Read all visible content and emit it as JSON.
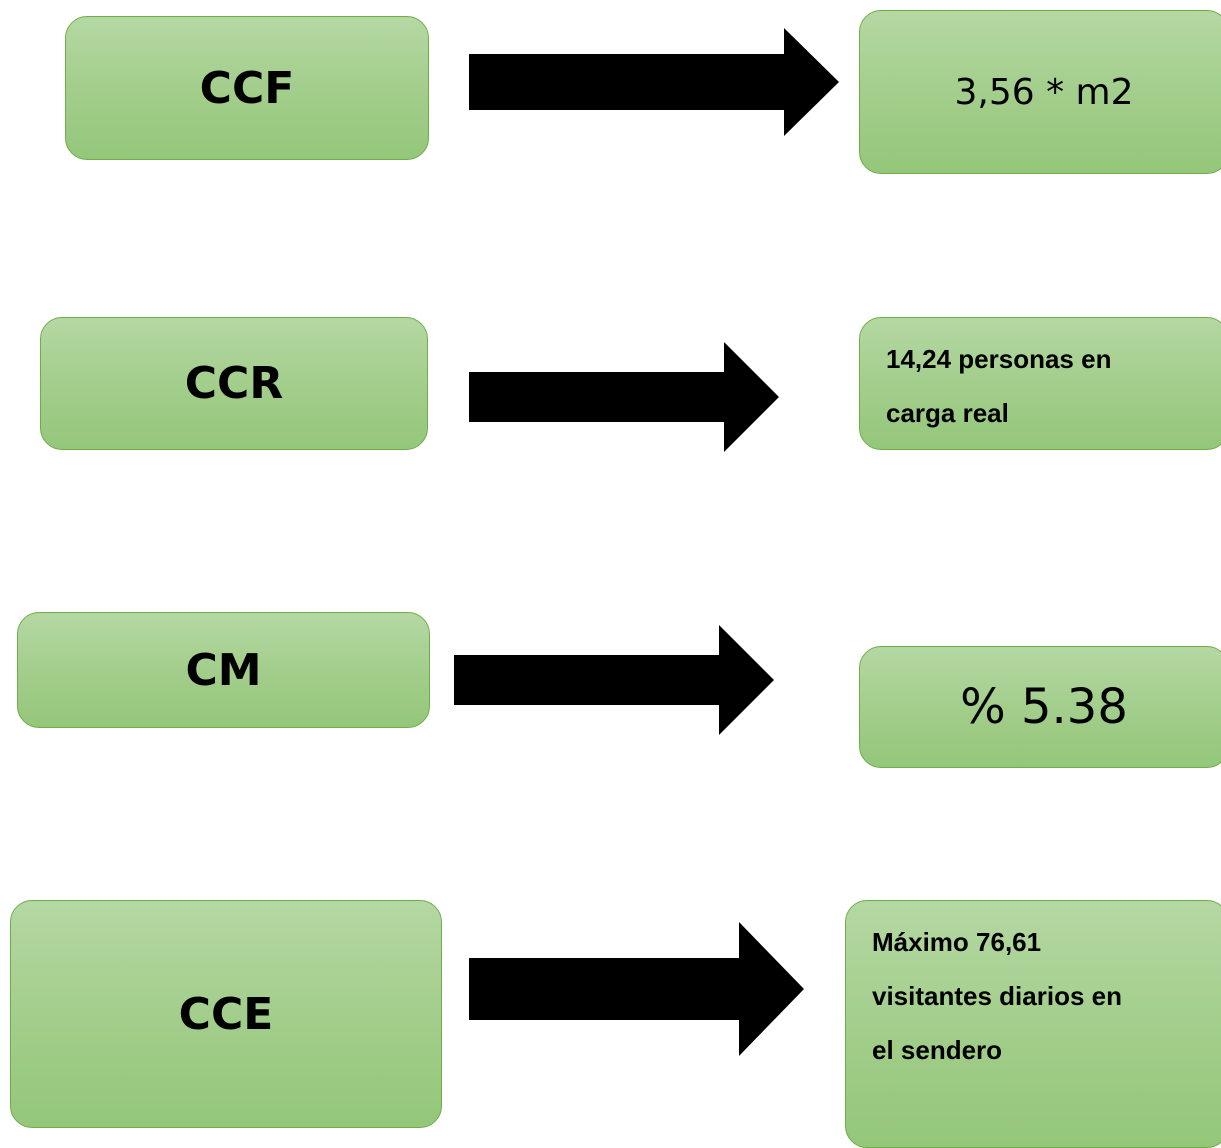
{
  "rows": [
    {
      "label": "CCF",
      "value": "3,56 * m2"
    },
    {
      "label": "CCR",
      "value": "14,24 personas en\ncarga real"
    },
    {
      "label": "CM",
      "value": "% 5.38"
    },
    {
      "label": "CCE",
      "value": "Máximo 76,61\nvisitantes diarios en\nel sendero"
    }
  ],
  "colors": {
    "box_fill_top": "#b4d8a3",
    "box_fill_bottom": "#94c77a",
    "box_border": "#71ad47",
    "arrow": "#000000"
  },
  "icons": {
    "connector": "right-arrow-icon"
  }
}
